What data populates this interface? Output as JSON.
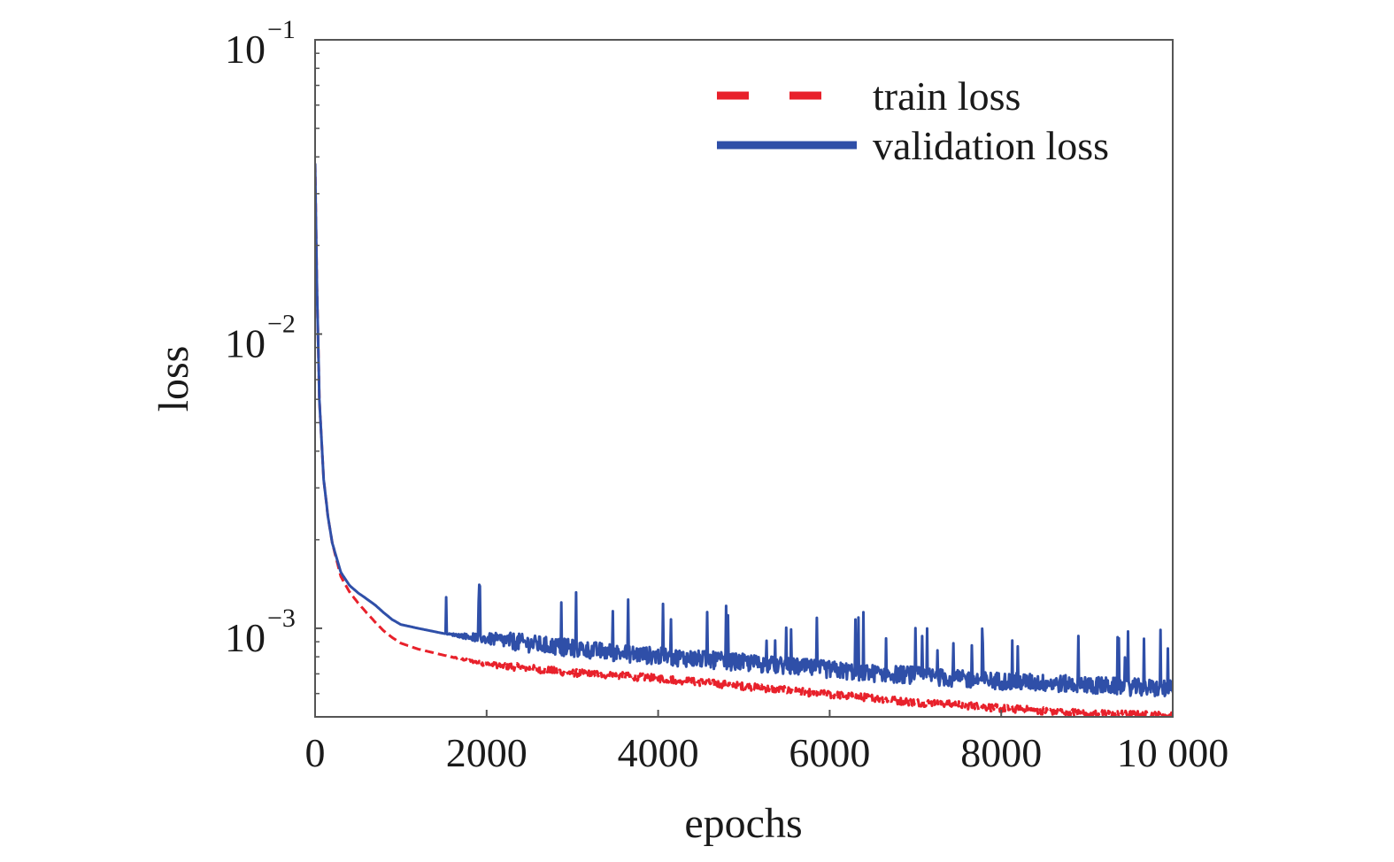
{
  "chart_data": {
    "type": "line",
    "title": "",
    "xlabel": "epochs",
    "ylabel": "loss",
    "xlim": [
      0,
      10000
    ],
    "ylim": [
      0.0005,
      0.1
    ],
    "yscale": "log",
    "grid": false,
    "legend_placement": "top-right",
    "x_ticks": [
      0,
      2000,
      4000,
      6000,
      8000,
      10000
    ],
    "x_tick_labels": [
      "0",
      "2000",
      "4000",
      "6000",
      "8000",
      "10 000"
    ],
    "y_ticks": [
      {
        "value": 0.1,
        "base": "10",
        "exp": "−1"
      },
      {
        "value": 0.01,
        "base": "10",
        "exp": "−2"
      },
      {
        "value": 0.001,
        "base": "10",
        "exp": "−3"
      }
    ],
    "series": [
      {
        "name": "train loss",
        "color": "#e8212b",
        "style": "dashed",
        "x": [
          0,
          20,
          50,
          100,
          150,
          200,
          300,
          400,
          500,
          600,
          700,
          800,
          900,
          1000,
          1200,
          1500,
          2000,
          2500,
          3000,
          3500,
          4000,
          4500,
          5000,
          5500,
          6000,
          6500,
          7000,
          7500,
          8000,
          8500,
          9000,
          9500,
          10000
        ],
        "y": [
          0.038,
          0.015,
          0.006,
          0.0032,
          0.0024,
          0.00195,
          0.0015,
          0.00133,
          0.00122,
          0.00113,
          0.00105,
          0.00098,
          0.00093,
          0.00089,
          0.00085,
          0.00081,
          0.00075,
          0.000725,
          0.0007,
          0.000685,
          0.00067,
          0.00065,
          0.00063,
          0.00061,
          0.00059,
          0.000575,
          0.000555,
          0.000545,
          0.00053,
          0.00052,
          0.00051,
          0.000505,
          0.0005
        ]
      },
      {
        "name": "validation loss",
        "color": "#2f4fa8",
        "style": "solid",
        "x": [
          0,
          20,
          50,
          100,
          150,
          200,
          300,
          400,
          500,
          600,
          700,
          800,
          900,
          1000,
          1200,
          1500,
          2000,
          2500,
          3000,
          3500,
          4000,
          4500,
          5000,
          5500,
          6000,
          6500,
          7000,
          7500,
          8000,
          8500,
          9000,
          9500,
          10000
        ],
        "y": [
          0.038,
          0.015,
          0.006,
          0.0032,
          0.0024,
          0.00195,
          0.00155,
          0.0014,
          0.00132,
          0.00126,
          0.0012,
          0.00113,
          0.00107,
          0.00103,
          0.001,
          0.00096,
          0.00091,
          0.00087,
          0.00084,
          0.00081,
          0.00079,
          0.00077,
          0.00075,
          0.00073,
          0.00071,
          0.00069,
          0.00068,
          0.00066,
          0.00065,
          0.00064,
          0.00063,
          0.00062,
          0.00061
        ]
      }
    ]
  }
}
